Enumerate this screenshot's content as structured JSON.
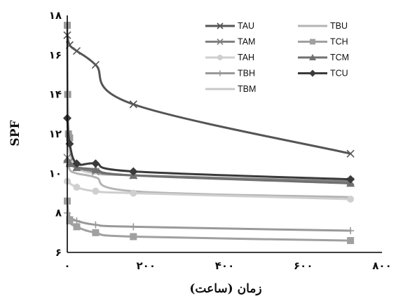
{
  "chart_data": {
    "type": "line",
    "title": "",
    "xlabel": "زمان (ساعت)",
    "ylabel": "SPF",
    "xlim": [
      0,
      800
    ],
    "ylim": [
      6,
      18
    ],
    "x_ticks": [
      0,
      200,
      400,
      600,
      800
    ],
    "y_ticks": [
      6,
      8,
      10,
      12,
      14,
      16,
      18
    ],
    "x_tick_labels": [
      "۰",
      "۲۰۰",
      "۴۰۰",
      "۶۰۰",
      "۸۰۰"
    ],
    "y_tick_labels": [
      "۶",
      "۸",
      "۱۰",
      "۱۲",
      "۱۴",
      "۱۶",
      "۱۸"
    ],
    "grid": false,
    "legend_position": "top-right",
    "series": [
      {
        "name": "TAU",
        "color": "#555555",
        "marker": "x",
        "width": 3,
        "x": [
          0,
          6,
          24,
          72,
          168,
          720
        ],
        "y": [
          17.0,
          16.5,
          16.2,
          15.5,
          13.5,
          11.0
        ]
      },
      {
        "name": "TAM",
        "color": "#808080",
        "marker": "x",
        "width": 3,
        "x": [
          0,
          6,
          24,
          72,
          168,
          720
        ],
        "y": [
          10.8,
          10.6,
          10.3,
          10.1,
          9.9,
          9.6
        ]
      },
      {
        "name": "TAH",
        "color": "#cfcfcf",
        "marker": "circle",
        "width": 3,
        "x": [
          0,
          24,
          72,
          168,
          720
        ],
        "y": [
          9.6,
          9.3,
          9.1,
          9.0,
          8.7
        ]
      },
      {
        "name": "TBH",
        "color": "#999999",
        "marker": "plus",
        "width": 3,
        "x": [
          0,
          6,
          24,
          72,
          168,
          720
        ],
        "y": [
          8.0,
          7.8,
          7.6,
          7.4,
          7.3,
          7.1
        ]
      },
      {
        "name": "TBM",
        "color": "#c8c8c8",
        "marker": "none",
        "width": 3,
        "x": [
          0,
          6,
          24,
          72,
          168,
          720
        ],
        "y": [
          12.0,
          11.0,
          10.3,
          10.0,
          9.9,
          9.6
        ]
      },
      {
        "name": "TBU",
        "color": "#b4b4b4",
        "marker": "none",
        "width": 3,
        "x": [
          0,
          6,
          24,
          72,
          168,
          720
        ],
        "y": [
          10.8,
          10.2,
          10.0,
          9.8,
          9.1,
          8.8
        ]
      },
      {
        "name": "TCH",
        "color": "#a0a0a0",
        "marker": "square",
        "width": 3,
        "x": [
          0,
          6,
          24,
          72,
          168,
          720
        ],
        "y": [
          8.6,
          7.6,
          7.3,
          7.0,
          6.8,
          6.6
        ]
      },
      {
        "name": "TCM",
        "color": "#707070",
        "marker": "triangle",
        "width": 3,
        "x": [
          0,
          6,
          24,
          72,
          168,
          720
        ],
        "y": [
          10.7,
          10.5,
          10.3,
          10.2,
          9.9,
          9.5
        ]
      },
      {
        "name": "TCU",
        "color": "#3a3a3a",
        "marker": "diamond",
        "width": 3,
        "x": [
          0,
          6,
          24,
          72,
          168,
          720
        ],
        "y": [
          12.8,
          11.5,
          10.5,
          10.5,
          10.1,
          9.7
        ]
      },
      {
        "name": "",
        "color": "#9a9a9a",
        "marker": "square",
        "width": 3,
        "x": [
          0,
          1,
          3,
          6
        ],
        "y": [
          17.5,
          14.0,
          12.0,
          11.8
        ]
      }
    ]
  }
}
